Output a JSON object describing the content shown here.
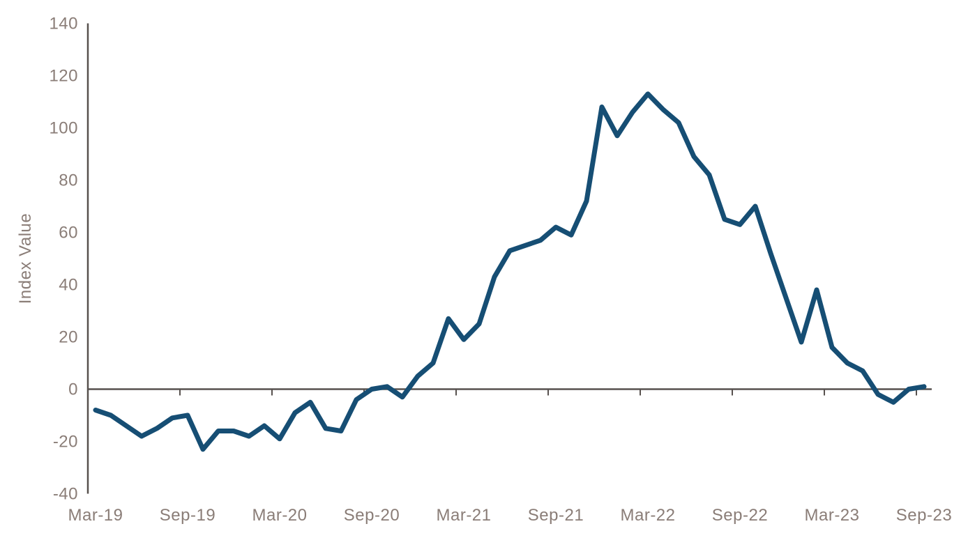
{
  "chart_data": {
    "type": "line",
    "title": "",
    "xlabel": "",
    "ylabel": "Index Value",
    "ylim": [
      -40,
      140
    ],
    "ytick_step": 20,
    "grid": false,
    "legend_position": "none",
    "xtick_labels": [
      "Mar-19",
      "Sep-19",
      "Mar-20",
      "Sep-20",
      "Mar-21",
      "Sep-21",
      "Mar-22",
      "Sep-22",
      "Mar-23",
      "Sep-23"
    ],
    "x": [
      "Mar-19",
      "Apr-19",
      "May-19",
      "Jun-19",
      "Jul-19",
      "Aug-19",
      "Sep-19",
      "Oct-19",
      "Nov-19",
      "Dec-19",
      "Jan-20",
      "Feb-20",
      "Mar-20",
      "Apr-20",
      "May-20",
      "Jun-20",
      "Jul-20",
      "Aug-20",
      "Sep-20",
      "Oct-20",
      "Nov-20",
      "Dec-20",
      "Jan-21",
      "Feb-21",
      "Mar-21",
      "Apr-21",
      "May-21",
      "Jun-21",
      "Jul-21",
      "Aug-21",
      "Sep-21",
      "Oct-21",
      "Nov-21",
      "Dec-21",
      "Jan-22",
      "Feb-22",
      "Mar-22",
      "Apr-22",
      "May-22",
      "Jun-22",
      "Jul-22",
      "Aug-22",
      "Sep-22",
      "Oct-22",
      "Nov-22",
      "Dec-22",
      "Jan-23",
      "Feb-23",
      "Mar-23",
      "Apr-23",
      "May-23",
      "Jun-23",
      "Jul-23",
      "Aug-23",
      "Sep-23"
    ],
    "series": [
      {
        "name": "Index Value",
        "values": [
          -8,
          -10,
          -14,
          -18,
          -15,
          -11,
          -10,
          -23,
          -16,
          -16,
          -18,
          -14,
          -19,
          -9,
          -5,
          -15,
          -16,
          -4,
          0,
          1,
          -3,
          5,
          10,
          27,
          19,
          25,
          43,
          53,
          55,
          57,
          62,
          59,
          72,
          108,
          97,
          106,
          113,
          107,
          102,
          89,
          82,
          65,
          63,
          70,
          52,
          35,
          18,
          38,
          16,
          10,
          7,
          -2,
          -5,
          0,
          1
        ]
      }
    ]
  },
  "colors": {
    "line": "#164e74",
    "axis": "#57514e",
    "tick_labels": "#8a7d77",
    "background": "#ffffff"
  }
}
